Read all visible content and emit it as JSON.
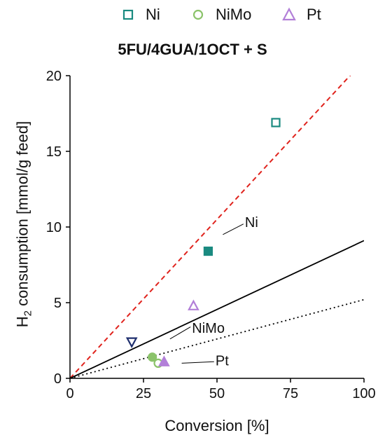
{
  "chart_data": {
    "type": "scatter",
    "title": "5FU/4GUA/1OCT + S",
    "xlabel": "Conversion [%]",
    "ylabel_parts": [
      "H",
      "2",
      " consumption [mmol/g feed]"
    ],
    "xlim": [
      0,
      100
    ],
    "ylim": [
      0,
      20
    ],
    "xticks": [
      0,
      25,
      50,
      75,
      100
    ],
    "yticks": [
      0,
      5,
      10,
      15,
      20
    ],
    "legend": {
      "placement": "top",
      "entries": [
        {
          "name": "Ni",
          "marker": "square-open",
          "color": "#1a8a80"
        },
        {
          "name": "NiMo",
          "marker": "circle-open",
          "color": "#8bc36a"
        },
        {
          "name": "Pt",
          "marker": "triangle-up-open",
          "color": "#b27fd8"
        }
      ]
    },
    "series": [
      {
        "name": "Ni",
        "marker": "square-open",
        "color": "#1a8a80",
        "points": [
          {
            "x": 70,
            "y": 16.9
          }
        ]
      },
      {
        "name": "Ni",
        "marker": "square-filled",
        "color": "#1a8a80",
        "points": [
          {
            "x": 47,
            "y": 8.4
          }
        ]
      },
      {
        "name": "NiMo",
        "marker": "circle-filled",
        "color": "#8bc36a",
        "points": [
          {
            "x": 28,
            "y": 1.4
          }
        ]
      },
      {
        "name": "NiMo",
        "marker": "circle-open",
        "color": "#8bc36a",
        "points": [
          {
            "x": 30,
            "y": 1.0
          }
        ]
      },
      {
        "name": "Pt",
        "marker": "triangle-up-open",
        "color": "#b27fd8",
        "points": [
          {
            "x": 42,
            "y": 4.8
          }
        ]
      },
      {
        "name": "Pt",
        "marker": "triangle-up-filled",
        "color": "#b27fd8",
        "points": [
          {
            "x": 32,
            "y": 1.1
          }
        ]
      },
      {
        "name": "",
        "marker": "triangle-down-open",
        "color": "#1f2f6e",
        "points": [
          {
            "x": 21,
            "y": 2.4
          }
        ]
      }
    ],
    "lines": [
      {
        "label": "Ni",
        "style": "dashed",
        "color": "#e0231d",
        "slope": 0.21
      },
      {
        "label": "NiMo",
        "style": "solid",
        "color": "#000000",
        "slope": 0.091
      },
      {
        "label": "Pt",
        "style": "dotted",
        "color": "#000000",
        "slope": 0.052
      }
    ],
    "annotations": [
      "Ni",
      "NiMo",
      "Pt"
    ]
  }
}
